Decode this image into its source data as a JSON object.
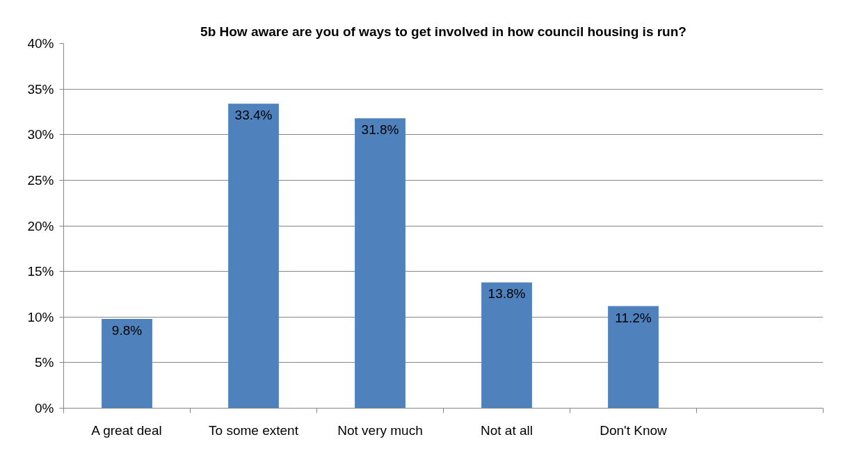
{
  "chart_data": {
    "type": "bar",
    "title": "5b How aware are you of ways to get involved in how council housing is run?",
    "categories": [
      "A great deal",
      "To some extent",
      "Not very much",
      "Not at all",
      "Don't Know",
      null
    ],
    "values": [
      9.8,
      33.4,
      31.8,
      13.8,
      11.2,
      null
    ],
    "color": "#4f81bd",
    "value_labels": [
      "9.8%",
      "33.4%",
      "31.8%",
      "13.8%",
      "11.2%",
      null
    ],
    "ylim": [
      0,
      40
    ],
    "yticks": [
      {
        "value": 0,
        "label": "0%"
      },
      {
        "value": 5,
        "label": "5%"
      },
      {
        "value": 10,
        "label": "10%"
      },
      {
        "value": 15,
        "label": "15%"
      },
      {
        "value": 20,
        "label": "20%"
      },
      {
        "value": 25,
        "label": "25%"
      },
      {
        "value": 30,
        "label": "30%"
      },
      {
        "value": 35,
        "label": "35%"
      },
      {
        "value": 40,
        "label": "40%"
      }
    ],
    "grid": "y"
  }
}
